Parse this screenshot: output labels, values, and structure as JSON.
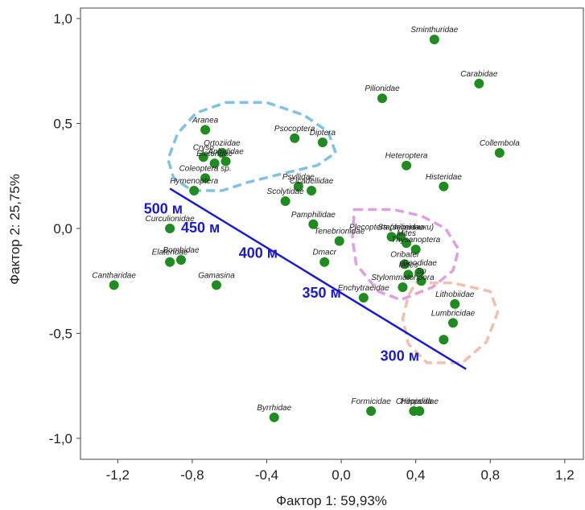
{
  "chart_data": {
    "type": "scatter",
    "xlabel": "Фактор 1: 59,93%",
    "ylabel": "Фактор 2: 25,75%",
    "xlim": [
      -1.4,
      1.3
    ],
    "ylim": [
      -1.1,
      1.05
    ],
    "x_ticks": [
      {
        "value": -1.2,
        "label": "-1,2"
      },
      {
        "value": -0.8,
        "label": "-0,8"
      },
      {
        "value": -0.4,
        "label": "-0,4"
      },
      {
        "value": 0.0,
        "label": "0,0"
      },
      {
        "value": 0.4,
        "label": "0,4"
      },
      {
        "value": 0.8,
        "label": "0,8"
      },
      {
        "value": 1.2,
        "label": "1,2"
      }
    ],
    "y_ticks": [
      {
        "value": 1.0,
        "label": "1,0"
      },
      {
        "value": 0.5,
        "label": "0,5"
      },
      {
        "value": 0.0,
        "label": "0,0"
      },
      {
        "value": -0.5,
        "label": "-0,5"
      },
      {
        "value": -1.0,
        "label": "-1,0"
      }
    ],
    "marker_color": "#1e8c1e",
    "points": [
      {
        "label": "Sminthuridae",
        "x": 0.5,
        "y": 0.9
      },
      {
        "label": "Carabidae",
        "x": 0.74,
        "y": 0.69
      },
      {
        "label": "Pilionidae",
        "x": 0.22,
        "y": 0.62
      },
      {
        "label": "Collembola",
        "x": 0.85,
        "y": 0.36
      },
      {
        "label": "Heteroptera",
        "x": 0.35,
        "y": 0.3
      },
      {
        "label": "Histeridae",
        "x": 0.55,
        "y": 0.2
      },
      {
        "label": "Aranea",
        "x": -0.73,
        "y": 0.47
      },
      {
        "label": "Psocoptera",
        "x": -0.25,
        "y": 0.43
      },
      {
        "label": "Diptera",
        "x": -0.1,
        "y": 0.41
      },
      {
        "label": "Cryso",
        "x": -0.74,
        "y": 0.34
      },
      {
        "label": "Ortoziidae",
        "x": -0.64,
        "y": 0.36
      },
      {
        "label": "Elateridae",
        "x": -0.68,
        "y": 0.31
      },
      {
        "label": "Aphididae",
        "x": -0.62,
        "y": 0.32
      },
      {
        "label": "Coleoptera sp.",
        "x": -0.73,
        "y": 0.24
      },
      {
        "label": "Hymenoptera",
        "x": -0.79,
        "y": 0.18
      },
      {
        "label": "Psyllidae",
        "x": -0.23,
        "y": 0.2
      },
      {
        "label": "Cicadellidae",
        "x": -0.16,
        "y": 0.18
      },
      {
        "label": "Scolytidae",
        "x": -0.3,
        "y": 0.13
      },
      {
        "label": "Curculionidae",
        "x": -0.92,
        "y": 0.0
      },
      {
        "label": "Pamphilidae",
        "x": -0.15,
        "y": 0.02
      },
      {
        "label": "Plecoptera (весенники)",
        "x": 0.27,
        "y": -0.04
      },
      {
        "label": "Tenebrionidae",
        "x": -0.01,
        "y": -0.06
      },
      {
        "label": "Staphilinidae",
        "x": 0.32,
        "y": -0.04
      },
      {
        "label": "Mites",
        "x": 0.35,
        "y": -0.07
      },
      {
        "label": "Thysanoptera",
        "x": 0.4,
        "y": -0.1
      },
      {
        "label": "Elateridae",
        "x": -0.92,
        "y": -0.16
      },
      {
        "label": "Bombidae",
        "x": -0.86,
        "y": -0.15
      },
      {
        "label": "Dmacr",
        "x": -0.09,
        "y": -0.16
      },
      {
        "label": "Oribatei",
        "x": 0.34,
        "y": -0.17
      },
      {
        "label": "Geodidae",
        "x": 0.42,
        "y": -0.21
      },
      {
        "label": "Mites",
        "x": 0.36,
        "y": -0.22
      },
      {
        "label": "Sp",
        "x": 0.43,
        "y": -0.25
      },
      {
        "label": "Cantharidae",
        "x": -1.22,
        "y": -0.27
      },
      {
        "label": "Gamasina",
        "x": -0.67,
        "y": -0.27
      },
      {
        "label": "Enchytraeidae",
        "x": 0.12,
        "y": -0.33
      },
      {
        "label": "Stylommatohpora",
        "x": 0.33,
        "y": -0.28
      },
      {
        "label": "Lithobiidae",
        "x": 0.61,
        "y": -0.36
      },
      {
        "label": "Lumbricidae",
        "x": 0.6,
        "y": -0.45
      },
      {
        "label": "",
        "x": 0.55,
        "y": -0.53
      },
      {
        "label": "Byrrhidae",
        "x": -0.36,
        "y": -0.9
      },
      {
        "label": "Formicidae",
        "x": 0.16,
        "y": -0.87
      },
      {
        "label": "Chilopoda",
        "x": 0.39,
        "y": -0.87
      },
      {
        "label": "Hepialidae",
        "x": 0.42,
        "y": -0.87
      }
    ],
    "altitude_line": {
      "color": "#1a1ad6",
      "start": {
        "x": -0.92,
        "y": 0.19
      },
      "end": {
        "x": 0.67,
        "y": -0.67
      }
    },
    "altitude_labels": [
      {
        "text": "500 м",
        "x": -1.06,
        "y": 0.07
      },
      {
        "text": "450 м",
        "x": -0.86,
        "y": -0.02
      },
      {
        "text": "400 м",
        "x": -0.55,
        "y": -0.14
      },
      {
        "text": "350 м",
        "x": -0.21,
        "y": -0.33
      },
      {
        "text": "300 м",
        "x": 0.21,
        "y": -0.63
      }
    ],
    "groups": [
      {
        "color": "#7ec3e3",
        "outline": [
          [
            -0.62,
            0.6
          ],
          [
            -0.4,
            0.6
          ],
          [
            -0.2,
            0.54
          ],
          [
            -0.07,
            0.46
          ],
          [
            -0.03,
            0.36
          ],
          [
            -0.13,
            0.3
          ],
          [
            -0.32,
            0.26
          ],
          [
            -0.5,
            0.22
          ],
          [
            -0.64,
            0.18
          ],
          [
            -0.8,
            0.18
          ],
          [
            -0.9,
            0.24
          ],
          [
            -0.93,
            0.33
          ],
          [
            -0.88,
            0.45
          ],
          [
            -0.78,
            0.55
          ]
        ]
      },
      {
        "color": "#e0a0e0",
        "outline": [
          [
            0.07,
            0.09
          ],
          [
            0.28,
            0.09
          ],
          [
            0.43,
            0.06
          ],
          [
            0.56,
            0.0
          ],
          [
            0.63,
            -0.1
          ],
          [
            0.6,
            -0.2
          ],
          [
            0.49,
            -0.28
          ],
          [
            0.32,
            -0.34
          ],
          [
            0.2,
            -0.3
          ],
          [
            0.08,
            -0.17
          ],
          [
            0.06,
            -0.05
          ]
        ]
      },
      {
        "color": "#f2c0ad",
        "outline": [
          [
            0.4,
            -0.26
          ],
          [
            0.6,
            -0.26
          ],
          [
            0.8,
            -0.3
          ],
          [
            0.84,
            -0.4
          ],
          [
            0.78,
            -0.54
          ],
          [
            0.65,
            -0.64
          ],
          [
            0.46,
            -0.64
          ],
          [
            0.36,
            -0.55
          ],
          [
            0.33,
            -0.43
          ],
          [
            0.36,
            -0.32
          ]
        ]
      }
    ]
  }
}
